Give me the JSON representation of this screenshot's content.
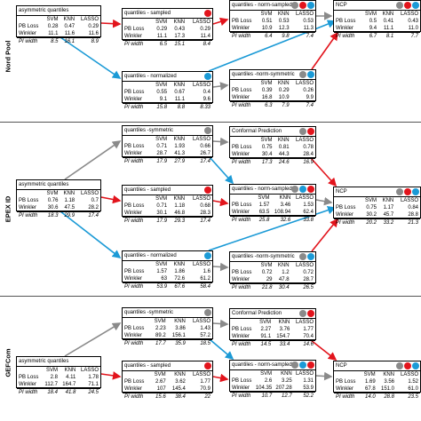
{
  "colors": {
    "gray": "#8a8a8a",
    "red": "#e2141c",
    "blue": "#1b9ad6"
  },
  "columns": [
    "SVM",
    "KNN",
    "LASSO"
  ],
  "rows": [
    "PB Loss",
    "Winkler",
    "PI width"
  ],
  "sections": [
    {
      "label": "Nord Pool",
      "boxes": {
        "asym": {
          "title": "asymmetric quantiles",
          "dots": [],
          "values": [
            [
              "0.28",
              "0.47",
              "0.29"
            ],
            [
              "11.1",
              "11.6",
              "11.6"
            ],
            [
              "8.5",
              "16.1",
              "8.9"
            ]
          ]
        },
        "qs": {
          "title": "quantiles - sampled",
          "dots": [
            "red"
          ],
          "values": [
            [
              "0.29",
              "0.43",
              "0.29"
            ],
            [
              "11.1",
              "17.3",
              "11.4"
            ],
            [
              "6.5",
              "15.1",
              "8.4"
            ]
          ]
        },
        "qns": {
          "title": "quantiles - norm-sampled",
          "dots": [
            "gray",
            "red",
            "blue"
          ],
          "values": [
            [
              "0.51",
              "0.53",
              "0.53"
            ],
            [
              "10.9",
              "12.3",
              "11.3"
            ],
            [
              "6.4",
              "9.8",
              "7.4"
            ]
          ]
        },
        "ncp": {
          "title": "NCP",
          "dots": [
            "gray",
            "red",
            "blue"
          ],
          "values": [
            [
              "0.5",
              "0.41",
              "0.43"
            ],
            [
              "9.4",
              "11.1",
              "11.0"
            ],
            [
              "6.7",
              "8.1",
              "7.7"
            ]
          ]
        },
        "qn": {
          "title": "quantiles - normalized",
          "dots": [
            "blue"
          ],
          "values": [
            [
              "0.55",
              "0.67",
              "0.4"
            ],
            [
              "9.1",
              "11.1",
              "9.6"
            ],
            [
              "15.8",
              "8.8",
              "8.33"
            ]
          ]
        },
        "qnsym": {
          "title": "quantiles -norm-symmetric",
          "dots": [
            "gray",
            "blue"
          ],
          "values": [
            [
              "0.39",
              "0.29",
              "0.26"
            ],
            [
              "16.8",
              "10.9",
              "9.9"
            ],
            [
              "6.3",
              "7.9",
              "7.4"
            ]
          ]
        }
      }
    },
    {
      "label": "EPEX ID",
      "boxes": {
        "qsym": {
          "title": "quantiles -symmetric",
          "dots": [
            "gray"
          ],
          "values": [
            [
              "0.71",
              "1.93",
              "0.66"
            ],
            [
              "28.7",
              "41.3",
              "26.7"
            ],
            [
              "17.9",
              "27.9",
              "17.4"
            ]
          ]
        },
        "cp": {
          "title": "Conformal Prediction",
          "dots": [
            "gray",
            "red"
          ],
          "values": [
            [
              "0.75",
              "0.81",
              "0.78"
            ],
            [
              "30.4",
              "44.3",
              "28.4"
            ],
            [
              "17.3",
              "24.6",
              "16.9"
            ]
          ]
        },
        "asym": {
          "title": "asymmetric quantiles",
          "dots": [],
          "values": [
            [
              "0.76",
              "1.18",
              "0.7"
            ],
            [
              "30.6",
              "47.5",
              "28.2"
            ],
            [
              "18.3",
              "29.9",
              "17.4"
            ]
          ]
        },
        "qs": {
          "title": "quantiles - sampled",
          "dots": [
            "red"
          ],
          "values": [
            [
              "0.71",
              "1.18",
              "0.68"
            ],
            [
              "30.1",
              "46.8",
              "28.3"
            ],
            [
              "17.9",
              "29.3",
              "17.4"
            ]
          ]
        },
        "qns": {
          "title": "quantiles - norm-sampled",
          "dots": [
            "gray",
            "blue",
            "red"
          ],
          "values": [
            [
              "1.57",
              "3.46",
              "1.53"
            ],
            [
              "63.5",
              "108.94",
              "62.4"
            ],
            [
              "25.8",
              "32.6",
              "33.8"
            ]
          ]
        },
        "ncp": {
          "title": "NCP",
          "dots": [
            "gray",
            "red",
            "blue"
          ],
          "values": [
            [
              "0.75",
              "1.17",
              "0.84"
            ],
            [
              "30.2",
              "45.7",
              "28.8"
            ],
            [
              "20.2",
              "33.2",
              "21.3"
            ]
          ]
        },
        "qn": {
          "title": "quantiles - normalized",
          "dots": [
            "blue"
          ],
          "values": [
            [
              "1.57",
              "1.86",
              "1.6"
            ],
            [
              "63",
              "72.6",
              "61.2"
            ],
            [
              "53.9",
              "67.6",
              "58.4"
            ]
          ]
        },
        "qnsym": {
          "title": "quantiles -norm-symmetric",
          "dots": [
            "gray",
            "blue"
          ],
          "values": [
            [
              "0.72",
              "1.2",
              "0.72"
            ],
            [
              "29",
              "47.8",
              "28.7"
            ],
            [
              "21.8",
              "30.4",
              "26.5"
            ]
          ]
        }
      }
    },
    {
      "label": "GEFCom",
      "boxes": {
        "qsym": {
          "title": "quantiles -symmetric",
          "dots": [
            "gray"
          ],
          "values": [
            [
              "2.23",
              "3.86",
              "1.43"
            ],
            [
              "89.2",
              "156.1",
              "57.2"
            ],
            [
              "17.7",
              "35.9",
              "18.5"
            ]
          ]
        },
        "cp": {
          "title": "Conformal Prediction",
          "dots": [
            "gray",
            "red"
          ],
          "values": [
            [
              "2.27",
              "3.76",
              "1.77"
            ],
            [
              "91.1",
              "154.7",
              "70.4"
            ],
            [
              "14.5",
              "33.4",
              "14.6"
            ]
          ]
        },
        "asym": {
          "title": "asymmetric quantiles",
          "dots": [],
          "values": [
            [
              "2.8",
              "4.11",
              "1.78"
            ],
            [
              "112.7",
              "164.7",
              "71.1"
            ],
            [
              "18.4",
              "41.8",
              "24.5"
            ]
          ]
        },
        "qs": {
          "title": "quantiles - sampled",
          "dots": [
            "red"
          ],
          "values": [
            [
              "2.67",
              "3.62",
              "1.77"
            ],
            [
              "107",
              "145.4",
              "70.9"
            ],
            [
              "15.6",
              "38.4",
              "22"
            ]
          ]
        },
        "qns": {
          "title": "quantiles - norm-sampled",
          "dots": [
            "gray",
            "blue",
            "red"
          ],
          "values": [
            [
              "2.6",
              "3.25",
              "1.31"
            ],
            [
              "104.35",
              "207.28",
              "53.9"
            ],
            [
              "10.7",
              "12.7",
              "52.2"
            ]
          ]
        },
        "ncp": {
          "title": "NCP",
          "dots": [
            "gray",
            "red",
            "blue"
          ],
          "values": [
            [
              "1.69",
              "3.56",
              "1.52"
            ],
            [
              "67.8",
              "151.0",
              "61.0"
            ],
            [
              "14.0",
              "28.8",
              "23.5"
            ]
          ]
        }
      }
    }
  ]
}
